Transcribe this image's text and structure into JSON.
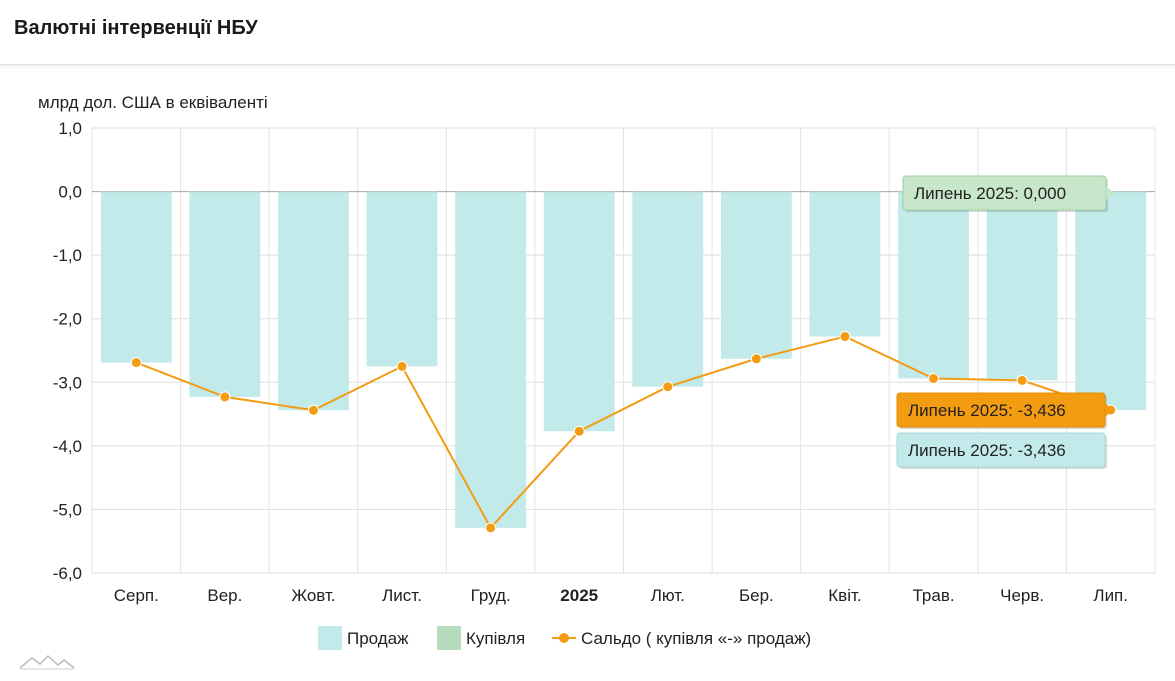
{
  "header": {
    "title": "Валютні інтервенції НБУ"
  },
  "chart_data": {
    "type": "bar",
    "ylabel": "млрд дол. США в еквіваленті",
    "categories": [
      "Серп.",
      "Вер.",
      "Жовт.",
      "Лист.",
      "Груд.",
      "2025",
      "Лют.",
      "Бер.",
      "Квіт.",
      "Трав.",
      "Черв.",
      "Лип."
    ],
    "bold_categories": [
      "2025"
    ],
    "ylim": [
      -6,
      1
    ],
    "yticks": [
      "1,0",
      "0,0",
      "-1,0",
      "-2,0",
      "-3,0",
      "-4,0",
      "-5,0",
      "-6,0"
    ],
    "ytick_values": [
      1,
      0,
      -1,
      -2,
      -3,
      -4,
      -5,
      -6
    ],
    "grid": true,
    "series": [
      {
        "name": "Продаж",
        "kind": "bar",
        "color": "#c3eaea",
        "values": [
          -2.69,
          -3.23,
          -3.44,
          -2.75,
          -5.29,
          -3.77,
          -3.07,
          -2.63,
          -2.28,
          -2.94,
          -2.97,
          -3.436
        ]
      },
      {
        "name": "Купівля",
        "kind": "bar",
        "color": "#b5dcbd",
        "values": [
          0,
          0,
          0,
          0,
          0,
          0,
          0,
          0,
          0,
          0,
          0,
          0
        ]
      },
      {
        "name": "Сальдо ( купівля «-» продаж)",
        "kind": "line",
        "color": "#f39c12",
        "values": [
          -2.69,
          -3.23,
          -3.44,
          -2.75,
          -5.29,
          -3.77,
          -3.07,
          -2.63,
          -2.28,
          -2.94,
          -2.97,
          -3.436
        ]
      }
    ],
    "legend": {
      "placement": "bottom-center"
    },
    "tooltips": [
      {
        "text": "Липень 2025: 0,000",
        "series": "Купівля",
        "bg": "#c8e6c9",
        "border": "#9ccf9f",
        "color": "#222"
      },
      {
        "text": "Липень 2025: -3,436",
        "series": "Сальдо ( купівля «-» продаж)",
        "bg": "#f39c12",
        "border": "#e08c00",
        "color": "#222"
      },
      {
        "text": "Липень 2025: -3,436",
        "series": "Продаж",
        "bg": "#c3eaea",
        "border": "#a6d9d9",
        "color": "#222"
      }
    ]
  }
}
